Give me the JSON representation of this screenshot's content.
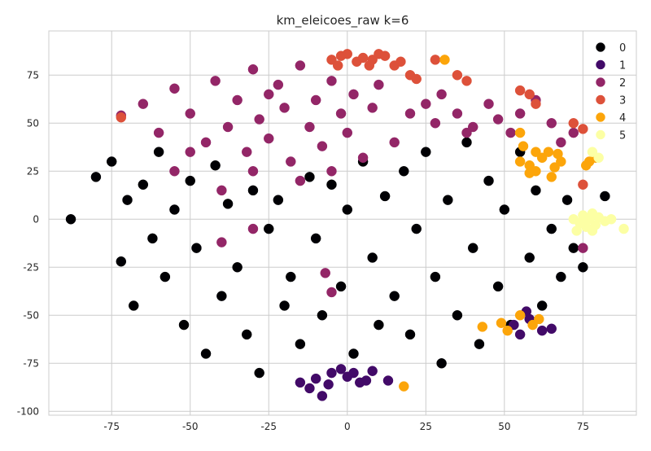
{
  "chart_data": {
    "type": "scatter",
    "title": "km_eleicoes_raw k=6",
    "xlabel": "",
    "ylabel": "",
    "xlim": [
      -95,
      92
    ],
    "ylim": [
      -102,
      98
    ],
    "xticks": [
      -75,
      -50,
      -25,
      0,
      25,
      50,
      75
    ],
    "yticks": [
      -100,
      -75,
      -50,
      -25,
      0,
      25,
      50,
      75
    ],
    "grid": true,
    "legend_position": "top-right",
    "series": [
      {
        "name": "0",
        "color": "#000004",
        "points": [
          [
            -88,
            0
          ],
          [
            -80,
            22
          ],
          [
            -75,
            30
          ],
          [
            -72,
            -22
          ],
          [
            -70,
            10
          ],
          [
            -68,
            -45
          ],
          [
            -65,
            18
          ],
          [
            -62,
            -10
          ],
          [
            -60,
            35
          ],
          [
            -58,
            -30
          ],
          [
            -55,
            5
          ],
          [
            -52,
            -55
          ],
          [
            -50,
            20
          ],
          [
            -48,
            -15
          ],
          [
            -45,
            -70
          ],
          [
            -42,
            28
          ],
          [
            -40,
            -40
          ],
          [
            -38,
            8
          ],
          [
            -35,
            -25
          ],
          [
            -32,
            -60
          ],
          [
            -30,
            15
          ],
          [
            -28,
            -80
          ],
          [
            -25,
            -5
          ],
          [
            -22,
            10
          ],
          [
            -20,
            -45
          ],
          [
            -18,
            -30
          ],
          [
            -15,
            -65
          ],
          [
            -12,
            22
          ],
          [
            -10,
            -10
          ],
          [
            -8,
            -50
          ],
          [
            -5,
            18
          ],
          [
            -2,
            -35
          ],
          [
            0,
            5
          ],
          [
            2,
            -70
          ],
          [
            5,
            30
          ],
          [
            8,
            -20
          ],
          [
            10,
            -55
          ],
          [
            12,
            12
          ],
          [
            15,
            -40
          ],
          [
            18,
            25
          ],
          [
            20,
            -60
          ],
          [
            22,
            -5
          ],
          [
            25,
            35
          ],
          [
            28,
            -30
          ],
          [
            30,
            -75
          ],
          [
            32,
            10
          ],
          [
            35,
            -50
          ],
          [
            38,
            40
          ],
          [
            40,
            -15
          ],
          [
            42,
            -65
          ],
          [
            45,
            20
          ],
          [
            48,
            -35
          ],
          [
            50,
            5
          ],
          [
            52,
            -55
          ],
          [
            55,
            35
          ],
          [
            58,
            -20
          ],
          [
            60,
            15
          ],
          [
            62,
            -45
          ],
          [
            65,
            -5
          ],
          [
            68,
            -30
          ],
          [
            70,
            10
          ],
          [
            72,
            -15
          ],
          [
            75,
            -25
          ],
          [
            82,
            12
          ]
        ]
      },
      {
        "name": "1",
        "color": "#420a68",
        "points": [
          [
            -15,
            -85
          ],
          [
            -12,
            -88
          ],
          [
            -8,
            -92
          ],
          [
            -5,
            -80
          ],
          [
            -2,
            -78
          ],
          [
            0,
            -82
          ],
          [
            2,
            -80
          ],
          [
            4,
            -85
          ],
          [
            6,
            -84
          ],
          [
            8,
            -79
          ],
          [
            -10,
            -83
          ],
          [
            -6,
            -86
          ],
          [
            13,
            -84
          ],
          [
            53,
            -55
          ],
          [
            58,
            -52
          ],
          [
            62,
            -58
          ],
          [
            55,
            -60
          ],
          [
            65,
            -57
          ],
          [
            57,
            -48
          ]
        ]
      },
      {
        "name": "2",
        "color": "#932667",
        "points": [
          [
            -72,
            54
          ],
          [
            -65,
            60
          ],
          [
            -60,
            45
          ],
          [
            -55,
            68
          ],
          [
            -50,
            55
          ],
          [
            -45,
            40
          ],
          [
            -42,
            72
          ],
          [
            -38,
            48
          ],
          [
            -35,
            62
          ],
          [
            -32,
            35
          ],
          [
            -30,
            78
          ],
          [
            -28,
            52
          ],
          [
            -25,
            42
          ],
          [
            -22,
            70
          ],
          [
            -20,
            58
          ],
          [
            -18,
            30
          ],
          [
            -15,
            80
          ],
          [
            -12,
            48
          ],
          [
            -10,
            62
          ],
          [
            -8,
            38
          ],
          [
            -5,
            72
          ],
          [
            -2,
            55
          ],
          [
            0,
            45
          ],
          [
            2,
            65
          ],
          [
            5,
            32
          ],
          [
            8,
            58
          ],
          [
            10,
            70
          ],
          [
            -5,
            25
          ],
          [
            -15,
            20
          ],
          [
            -30,
            25
          ],
          [
            -40,
            15
          ],
          [
            25,
            60
          ],
          [
            28,
            50
          ],
          [
            30,
            65
          ],
          [
            35,
            55
          ],
          [
            38,
            45
          ],
          [
            40,
            48
          ],
          [
            45,
            60
          ],
          [
            48,
            52
          ],
          [
            52,
            45
          ],
          [
            55,
            55
          ],
          [
            60,
            62
          ],
          [
            65,
            50
          ],
          [
            68,
            40
          ],
          [
            72,
            45
          ],
          [
            -55,
            25
          ],
          [
            -50,
            35
          ],
          [
            -7,
            -28
          ],
          [
            -5,
            -38
          ],
          [
            -40,
            -12
          ],
          [
            75,
            -15
          ],
          [
            -30,
            -5
          ],
          [
            15,
            40
          ],
          [
            20,
            55
          ],
          [
            -25,
            65
          ]
        ]
      },
      {
        "name": "3",
        "color": "#dd513a",
        "points": [
          [
            -5,
            83
          ],
          [
            -2,
            85
          ],
          [
            0,
            86
          ],
          [
            3,
            82
          ],
          [
            5,
            84
          ],
          [
            8,
            83
          ],
          [
            10,
            86
          ],
          [
            12,
            85
          ],
          [
            15,
            80
          ],
          [
            17,
            82
          ],
          [
            -3,
            80
          ],
          [
            7,
            80
          ],
          [
            20,
            75
          ],
          [
            22,
            73
          ],
          [
            35,
            75
          ],
          [
            38,
            72
          ],
          [
            55,
            67
          ],
          [
            58,
            65
          ],
          [
            -72,
            53
          ],
          [
            72,
            50
          ],
          [
            75,
            47
          ],
          [
            75,
            18
          ],
          [
            28,
            83
          ],
          [
            60,
            60
          ]
        ]
      },
      {
        "name": "4",
        "color": "#fca50a",
        "points": [
          [
            55,
            30
          ],
          [
            58,
            28
          ],
          [
            60,
            25
          ],
          [
            62,
            32
          ],
          [
            64,
            35
          ],
          [
            66,
            27
          ],
          [
            68,
            30
          ],
          [
            60,
            35
          ],
          [
            56,
            38
          ],
          [
            65,
            22
          ],
          [
            58,
            24
          ],
          [
            67,
            34
          ],
          [
            55,
            45
          ],
          [
            77,
            30
          ],
          [
            79,
            32
          ],
          [
            76,
            28
          ],
          [
            31,
            83
          ],
          [
            18,
            -87
          ],
          [
            43,
            -56
          ],
          [
            49,
            -54
          ],
          [
            51,
            -58
          ],
          [
            55,
            -50
          ],
          [
            59,
            -55
          ],
          [
            61,
            -52
          ]
        ]
      },
      {
        "name": "5",
        "color": "#fcffa4",
        "points": [
          [
            72,
            0
          ],
          [
            74,
            -2
          ],
          [
            75,
            2
          ],
          [
            76,
            -4
          ],
          [
            77,
            0
          ],
          [
            78,
            3
          ],
          [
            79,
            -3
          ],
          [
            80,
            1
          ],
          [
            82,
            -1
          ],
          [
            84,
            0
          ],
          [
            73,
            -6
          ],
          [
            78,
            -6
          ],
          [
            88,
            -5
          ],
          [
            80,
            32
          ],
          [
            78,
            35
          ],
          [
            76,
            -1
          ]
        ]
      }
    ]
  }
}
